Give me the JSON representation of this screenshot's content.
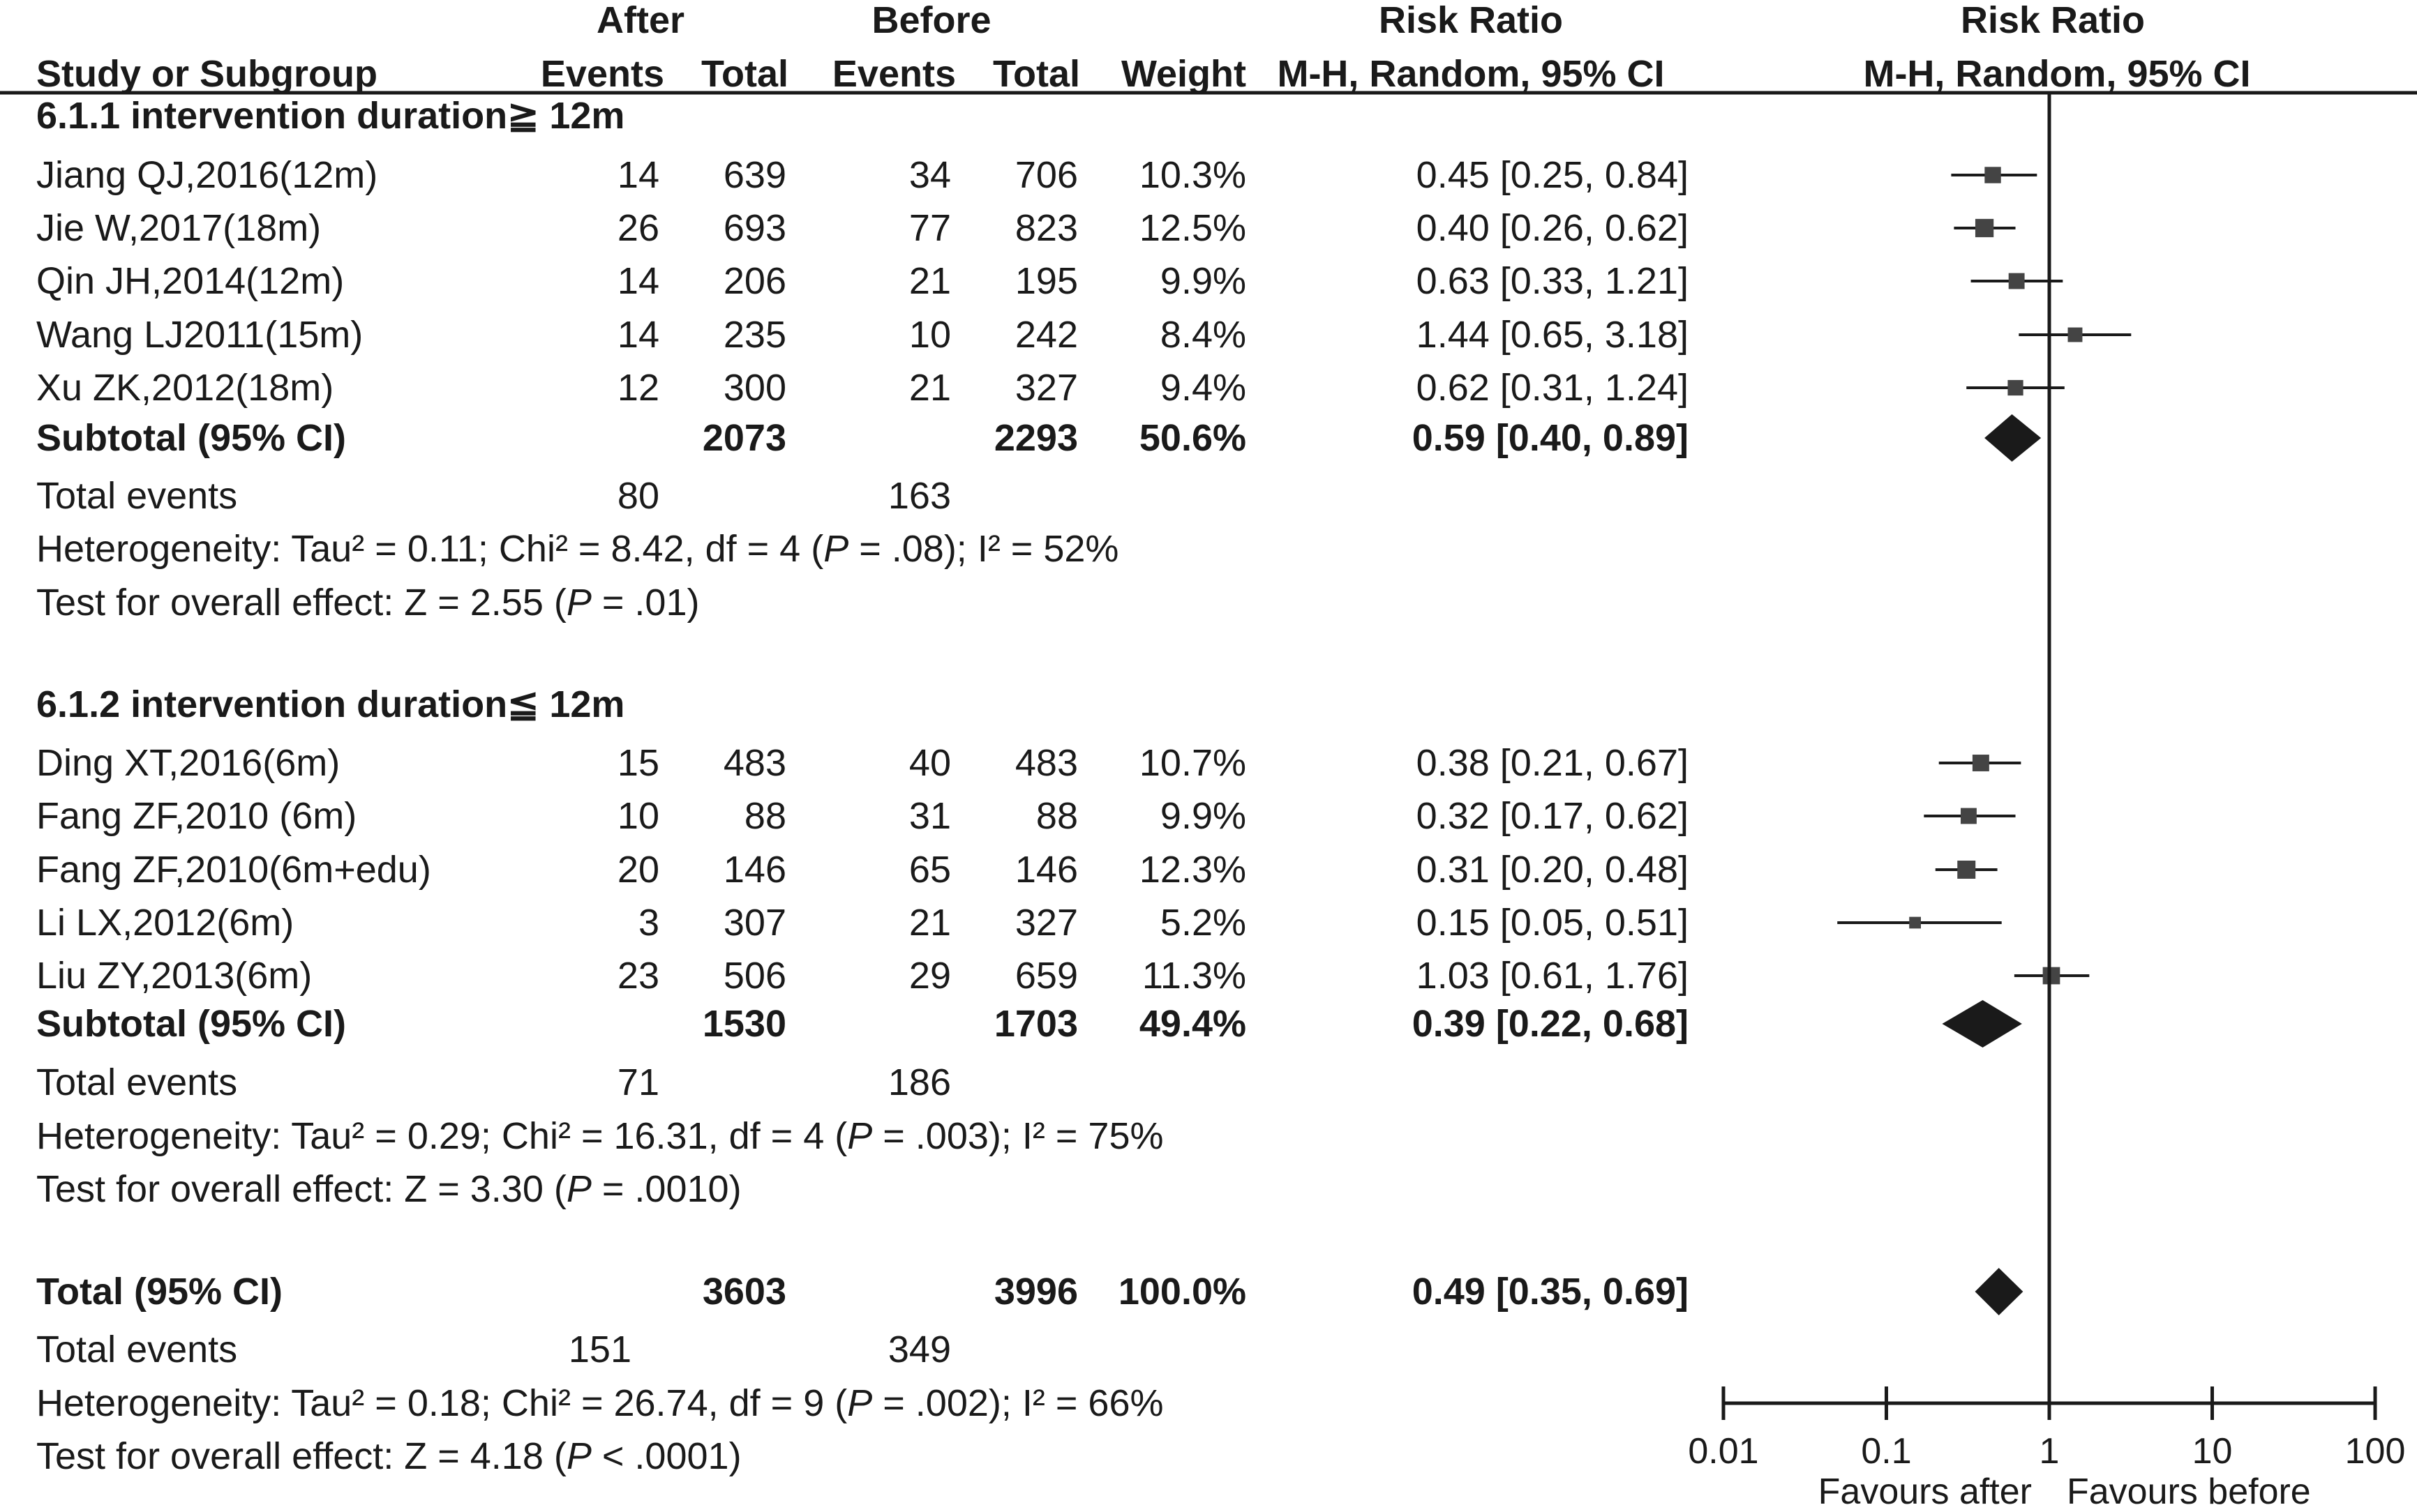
{
  "header": {
    "after": "After",
    "before": "Before",
    "risk_ratio_table": "Risk Ratio",
    "risk_ratio_plot": "Risk Ratio",
    "study": "Study or Subgroup",
    "events_after": "Events",
    "total_after": "Total",
    "events_before": "Events",
    "total_before": "Total",
    "weight": "Weight",
    "method_table": "M-H, Random, 95% CI",
    "method_plot": "M-H, Random, 95% CI"
  },
  "chart_data": {
    "type": "forest",
    "measure": "Risk Ratio",
    "x_scale": "log",
    "xlim": [
      0.01,
      100
    ],
    "ticks": [
      "0.01",
      "0.1",
      "1",
      "10",
      "100"
    ],
    "null_line": 1,
    "favours_left": "Favours after",
    "favours_right": "Favours before",
    "groups": [
      {
        "title": "6.1.1 intervention duration≧ 12m",
        "studies": [
          {
            "name": "Jiang QJ,2016(12m)",
            "e1": "14",
            "n1": "639",
            "e2": "34",
            "n2": "706",
            "weight": "10.3%",
            "ci_text": "0.45 [0.25, 0.84]",
            "rr": 0.45,
            "lo": 0.25,
            "hi": 0.84
          },
          {
            "name": "Jie W,2017(18m)",
            "e1": "26",
            "n1": "693",
            "e2": "77",
            "n2": "823",
            "weight": "12.5%",
            "ci_text": "0.40 [0.26, 0.62]",
            "rr": 0.4,
            "lo": 0.26,
            "hi": 0.62
          },
          {
            "name": "Qin JH,2014(12m)",
            "e1": "14",
            "n1": "206",
            "e2": "21",
            "n2": "195",
            "weight": "9.9%",
            "ci_text": "0.63 [0.33, 1.21]",
            "rr": 0.63,
            "lo": 0.33,
            "hi": 1.21
          },
          {
            "name": "Wang LJ2011(15m)",
            "e1": "14",
            "n1": "235",
            "e2": "10",
            "n2": "242",
            "weight": "8.4%",
            "ci_text": "1.44 [0.65, 3.18]",
            "rr": 1.44,
            "lo": 0.65,
            "hi": 3.18
          },
          {
            "name": "Xu ZK,2012(18m)",
            "e1": "12",
            "n1": "300",
            "e2": "21",
            "n2": "327",
            "weight": "9.4%",
            "ci_text": "0.62 [0.31, 1.24]",
            "rr": 0.62,
            "lo": 0.31,
            "hi": 1.24
          }
        ],
        "subtotal": {
          "label": "Subtotal (95% CI)",
          "n1": "2073",
          "n2": "2293",
          "weight": "50.6%",
          "ci_text": "0.59 [0.40, 0.89]",
          "rr": 0.59,
          "lo": 0.4,
          "hi": 0.89
        },
        "total_events": {
          "label": "Total events",
          "e1": "80",
          "e2": "163"
        },
        "heterogeneity": {
          "prefix": "Heterogeneity: Tau² = 0.11; Chi² = 8.42, df = 4 (",
          "p": "P",
          "suffix": " = .08); I² = 52%"
        },
        "overall": {
          "prefix": "Test for overall effect: Z = 2.55 (",
          "p": "P",
          "suffix": " = .01)"
        }
      },
      {
        "title": "6.1.2 intervention duration≦ 12m",
        "studies": [
          {
            "name": "Ding XT,2016(6m)",
            "e1": "15",
            "n1": "483",
            "e2": "40",
            "n2": "483",
            "weight": "10.7%",
            "ci_text": "0.38 [0.21, 0.67]",
            "rr": 0.38,
            "lo": 0.21,
            "hi": 0.67
          },
          {
            "name": "Fang ZF,2010 (6m)",
            "e1": "10",
            "n1": "88",
            "e2": "31",
            "n2": "88",
            "weight": "9.9%",
            "ci_text": "0.32 [0.17, 0.62]",
            "rr": 0.32,
            "lo": 0.17,
            "hi": 0.62
          },
          {
            "name": "Fang ZF,2010(6m+edu)",
            "e1": "20",
            "n1": "146",
            "e2": "65",
            "n2": "146",
            "weight": "12.3%",
            "ci_text": "0.31 [0.20, 0.48]",
            "rr": 0.31,
            "lo": 0.2,
            "hi": 0.48
          },
          {
            "name": "Li LX,2012(6m)",
            "e1": "3",
            "n1": "307",
            "e2": "21",
            "n2": "327",
            "weight": "5.2%",
            "ci_text": "0.15 [0.05, 0.51]",
            "rr": 0.15,
            "lo": 0.05,
            "hi": 0.51
          },
          {
            "name": "Liu ZY,2013(6m)",
            "e1": "23",
            "n1": "506",
            "e2": "29",
            "n2": "659",
            "weight": "11.3%",
            "ci_text": "1.03 [0.61, 1.76]",
            "rr": 1.03,
            "lo": 0.61,
            "hi": 1.76
          }
        ],
        "subtotal": {
          "label": "Subtotal (95% CI)",
          "n1": "1530",
          "n2": "1703",
          "weight": "49.4%",
          "ci_text": "0.39 [0.22, 0.68]",
          "rr": 0.39,
          "lo": 0.22,
          "hi": 0.68
        },
        "total_events": {
          "label": "Total events",
          "e1": "71",
          "e2": "186"
        },
        "heterogeneity": {
          "prefix": "Heterogeneity: Tau² = 0.29; Chi² = 16.31, df = 4 (",
          "p": "P",
          "suffix": " = .003); I² = 75%"
        },
        "overall": {
          "prefix": "Test for overall effect: Z = 3.30 (",
          "p": "P",
          "suffix": " = .0010)"
        }
      }
    ],
    "total": {
      "label": "Total (95% CI)",
      "n1": "3603",
      "n2": "3996",
      "weight": "100.0%",
      "ci_text": "0.49 [0.35, 0.69]",
      "rr": 0.49,
      "lo": 0.35,
      "hi": 0.69,
      "total_events": {
        "label": "Total events",
        "e1": "151",
        "e2": "349"
      },
      "heterogeneity": {
        "prefix": "Heterogeneity: Tau² = 0.18; Chi² = 26.74, df = 9 (",
        "p": "P",
        "suffix": " = .002); I² = 66%"
      },
      "overall": {
        "prefix": "Test for overall effect: Z = 4.18 (",
        "p": "P",
        "suffix": " < .0001)"
      }
    }
  }
}
